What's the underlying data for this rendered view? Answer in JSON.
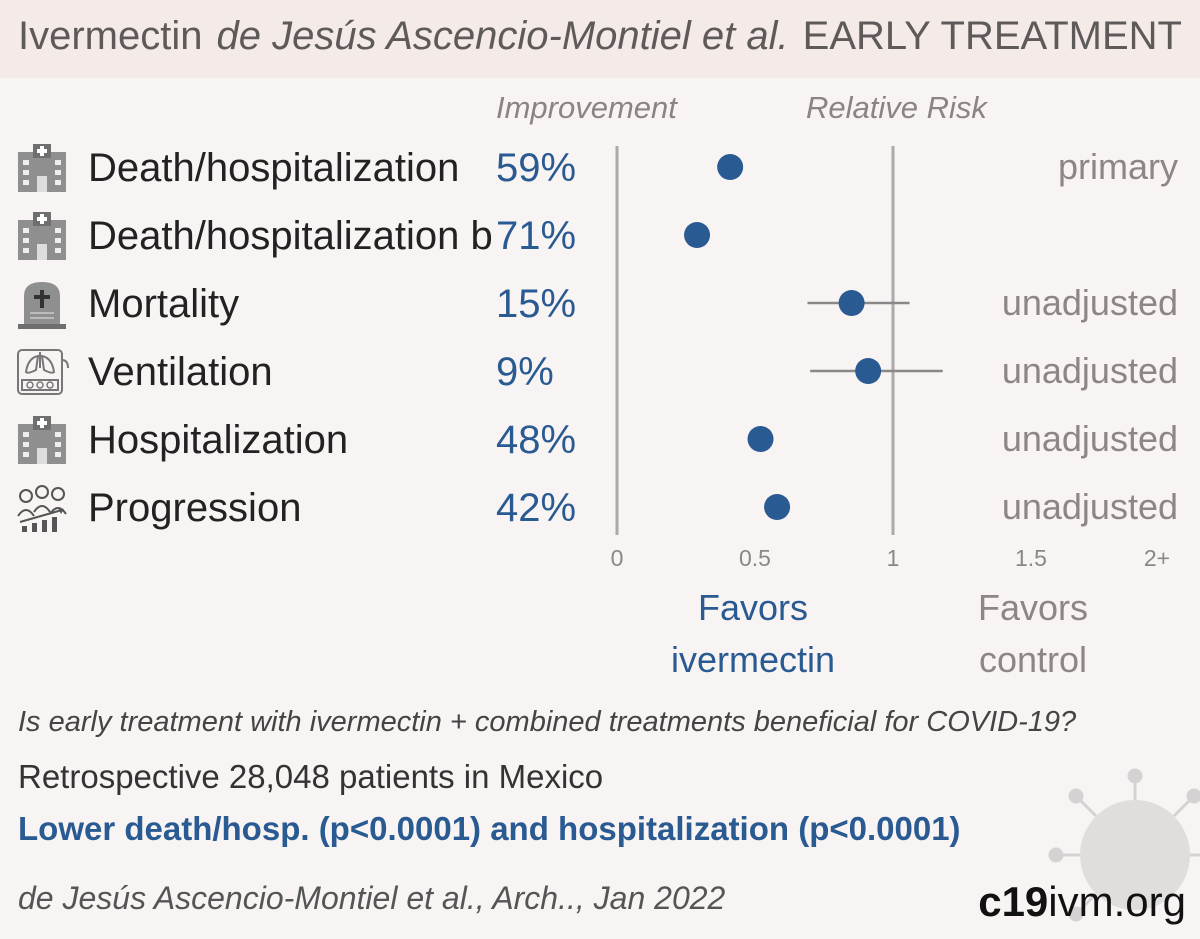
{
  "header": {
    "drug": "Ivermectin",
    "study": "de Jesús Ascencio-Montiel et al.",
    "stage": "EARLY TREATMENT"
  },
  "columns": {
    "improvement": "Improvement",
    "relative_risk": "Relative Risk"
  },
  "rows": [
    {
      "icon": "hospital-icon",
      "label": "Death/hospitalization",
      "improvement": "59%",
      "note": "primary"
    },
    {
      "icon": "hospital-icon",
      "label": "Death/hospitalization b",
      "improvement": "71%",
      "note": ""
    },
    {
      "icon": "tombstone-icon",
      "label": "Mortality",
      "improvement": "15%",
      "note": "unadjusted"
    },
    {
      "icon": "ventilator-icon",
      "label": "Ventilation",
      "improvement": "9%",
      "note": "unadjusted"
    },
    {
      "icon": "hospital-icon",
      "label": "Hospitalization",
      "improvement": "48%",
      "note": "unadjusted"
    },
    {
      "icon": "progression-icon",
      "label": "Progression",
      "improvement": "42%",
      "note": "unadjusted"
    }
  ],
  "axis": {
    "ticks": [
      "0",
      "0.5",
      "1",
      "1.5",
      "2+"
    ],
    "favors_left": [
      "Favors",
      "ivermectin"
    ],
    "favors_right": [
      "Favors",
      "control"
    ]
  },
  "chart_data": {
    "type": "scatter",
    "title": "",
    "xlabel": "Relative Risk",
    "xlim": [
      0,
      2
    ],
    "reference_line": 1,
    "categories": [
      "Death/hospitalization",
      "Death/hospitalization b",
      "Mortality",
      "Ventilation",
      "Hospitalization",
      "Progression"
    ],
    "values": [
      0.41,
      0.29,
      0.85,
      0.91,
      0.52,
      0.58
    ],
    "ci_low": [
      null,
      null,
      0.69,
      0.7,
      null,
      null
    ],
    "ci_high": [
      null,
      null,
      1.06,
      1.18,
      null,
      null
    ]
  },
  "colors": {
    "accent": "#2a5a92",
    "axis_line": "#aaaaaa",
    "background": "#f8f4f3",
    "header_bg": "#f4ebe9"
  },
  "footer": {
    "question": "Is early treatment with ivermectin + combined treatments beneficial for COVID-19?",
    "design": "Retrospective 28,048 patients in Mexico",
    "result": "Lower death/hosp. (p<0.0001) and hospitalization (p<0.0001)",
    "citation": "de Jesús Ascencio-Montiel et al., Arch.., Jan 2022",
    "brand_bold": "c19",
    "brand_rest": "ivm.org"
  }
}
